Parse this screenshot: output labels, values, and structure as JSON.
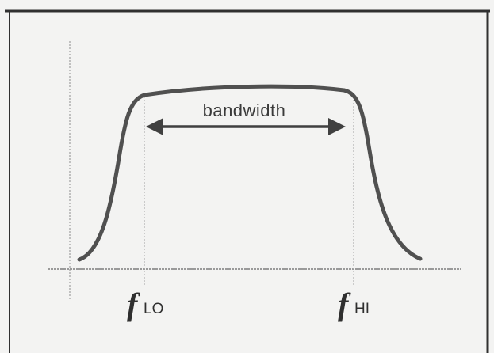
{
  "diagram": {
    "bandwidth_label": "bandwidth",
    "low_freq": {
      "symbol": "f",
      "subscript": "LO"
    },
    "high_freq": {
      "symbol": "f",
      "subscript": "HI"
    },
    "colors": {
      "curve": "#505050",
      "arrow": "#404040",
      "guides": "#a8a8a8",
      "border": "#303030",
      "background": "#f3f3f2"
    }
  }
}
